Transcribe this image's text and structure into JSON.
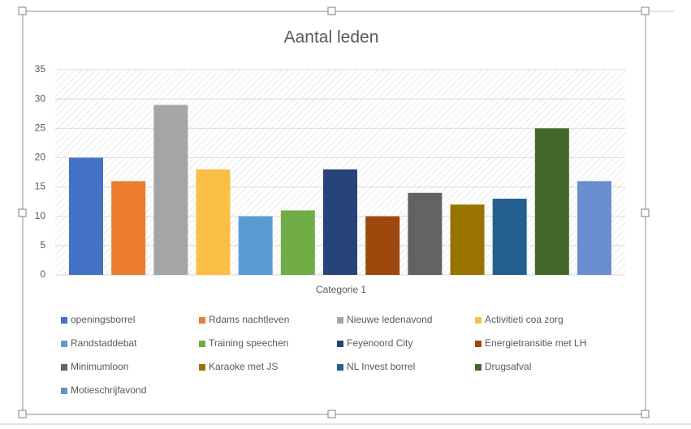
{
  "chart_data": {
    "type": "bar",
    "title": "Aantal leden",
    "categories": [
      "Categorie 1"
    ],
    "series": [
      {
        "name": "openingsborrel",
        "color": "#4472c4",
        "values": [
          20
        ]
      },
      {
        "name": "Rdams nachtleven",
        "color": "#ed7d31",
        "values": [
          16
        ]
      },
      {
        "name": "Nieuwe ledenavond",
        "color": "#a5a5a5",
        "values": [
          29
        ]
      },
      {
        "name": "Activitieti coa zorg",
        "color": "#fbbf45",
        "values": [
          18
        ]
      },
      {
        "name": "Randstaddebat",
        "color": "#5b9bd5",
        "values": [
          10
        ]
      },
      {
        "name": "Training speechen",
        "color": "#70ad47",
        "values": [
          11
        ]
      },
      {
        "name": "Feyenoord City",
        "color": "#264478",
        "values": [
          18
        ]
      },
      {
        "name": "Energietransitie met LH",
        "color": "#9e480e",
        "values": [
          10
        ]
      },
      {
        "name": "Minimumloon",
        "color": "#636363",
        "values": [
          14
        ]
      },
      {
        "name": "Karaoke met JS",
        "color": "#997300",
        "values": [
          12
        ]
      },
      {
        "name": "NL Invest borrel",
        "color": "#255e91",
        "values": [
          13
        ]
      },
      {
        "name": "Drugsafval",
        "color": "#43682b",
        "values": [
          25
        ]
      },
      {
        "name": "Motieschrijfavond",
        "color": "#698ed0",
        "values": [
          16
        ]
      }
    ],
    "ylim": [
      0,
      35
    ],
    "yticks": [
      0,
      5,
      10,
      15,
      20,
      25,
      30,
      35
    ],
    "grid": true,
    "legend": "bottom"
  }
}
